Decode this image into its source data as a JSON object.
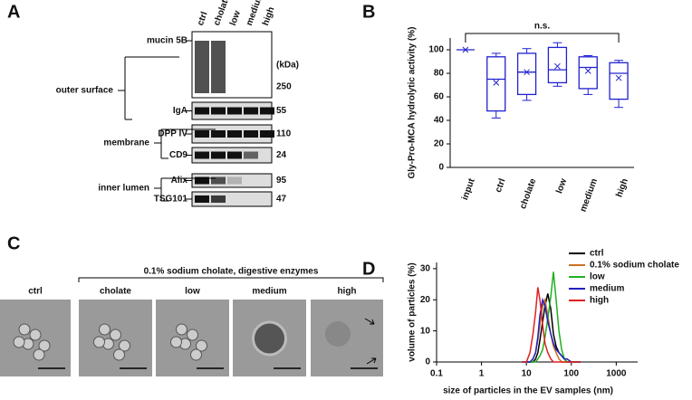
{
  "panel_labels": [
    "A",
    "B",
    "C",
    "D"
  ],
  "blot": {
    "lanes": [
      "ctrl",
      "cholate",
      "low",
      "medium",
      "high"
    ],
    "unit": "(kDa)",
    "rows": [
      {
        "name": "mucin 5B",
        "kda": "250"
      },
      {
        "name": "IgA",
        "kda": "55"
      },
      {
        "name": "DPP IV",
        "kda": "110"
      },
      {
        "name": "CD9",
        "kda": "24"
      },
      {
        "name": "Alix",
        "kda": "95"
      },
      {
        "name": "TSG101",
        "kda": "47"
      }
    ],
    "groups": [
      "outer surface",
      "membrane",
      "inner lumen"
    ]
  },
  "em": {
    "heading": "0.1% sodium cholate, digestive enzymes",
    "panels": [
      "ctrl",
      "cholate",
      "low",
      "medium",
      "high"
    ]
  },
  "chart_data": [
    {
      "type": "box",
      "y_label": "Gly-Pro-MCA hydrolytic activity (%)",
      "annotation": "n.s.",
      "categories": [
        "input",
        "ctrl",
        "cholate",
        "low",
        "medium",
        "high"
      ],
      "color": "#2020d0",
      "boxes": [
        {
          "min": 100,
          "q1": 100,
          "median": 100,
          "q3": 100,
          "max": 100,
          "mean": 100
        },
        {
          "min": 42,
          "q1": 48,
          "median": 75,
          "q3": 94,
          "max": 97,
          "mean": 72
        },
        {
          "min": 57,
          "q1": 62,
          "median": 81,
          "q3": 97,
          "max": 101,
          "mean": 81
        },
        {
          "min": 69,
          "q1": 72,
          "median": 83,
          "q3": 102,
          "max": 106,
          "mean": 86
        },
        {
          "min": 62,
          "q1": 67,
          "median": 85,
          "q3": 94,
          "max": 95,
          "mean": 82
        },
        {
          "min": 51,
          "q1": 58,
          "median": 80,
          "q3": 89,
          "max": 91,
          "mean": 76
        }
      ],
      "ylim": [
        0,
        110
      ],
      "yticks": [
        0,
        20,
        40,
        60,
        80,
        100
      ]
    },
    {
      "type": "line",
      "x_label": "size of particles in the EV samples (nm)",
      "y_label": "volume of particles (%)",
      "x": [
        8,
        10,
        12,
        14,
        16,
        18,
        20,
        23,
        26,
        30,
        35,
        40,
        46,
        53,
        61,
        70,
        80,
        100,
        130,
        160
      ],
      "series": [
        {
          "name": "ctrl",
          "color": "#000000",
          "values": [
            0,
            0,
            0,
            0,
            1,
            3,
            7,
            13,
            18,
            22,
            17,
            9,
            5,
            3,
            2,
            1,
            0,
            0,
            0,
            0
          ]
        },
        {
          "name": "0.1% sodium cholate",
          "color": "#c87020",
          "values": [
            0,
            0,
            0,
            1,
            3,
            7,
            12,
            18,
            20,
            15,
            9,
            5,
            3,
            1,
            0,
            0,
            0,
            0,
            0,
            0
          ]
        },
        {
          "name": "low",
          "color": "#20b020",
          "values": [
            0,
            0,
            0,
            0,
            0,
            1,
            2,
            4,
            8,
            14,
            21,
            29,
            20,
            10,
            4,
            1,
            0,
            0,
            0,
            0
          ]
        },
        {
          "name": "medium",
          "color": "#2020c0",
          "values": [
            0,
            0,
            0,
            1,
            3,
            8,
            15,
            20,
            18,
            13,
            9,
            6,
            4,
            3,
            2,
            1,
            1,
            0,
            0,
            0
          ]
        },
        {
          "name": "high",
          "color": "#e02020",
          "values": [
            0,
            0,
            3,
            9,
            16,
            24,
            20,
            12,
            6,
            3,
            1,
            0,
            0,
            0,
            0,
            0,
            0,
            0,
            0,
            0
          ]
        }
      ],
      "xlim": [
        0.1,
        3000
      ],
      "xticks": [
        0.1,
        1,
        10,
        100,
        1000
      ],
      "log_x": true,
      "ylim": [
        0,
        32
      ],
      "yticks": [
        0,
        10,
        20,
        30
      ],
      "legend": "top-right"
    }
  ]
}
